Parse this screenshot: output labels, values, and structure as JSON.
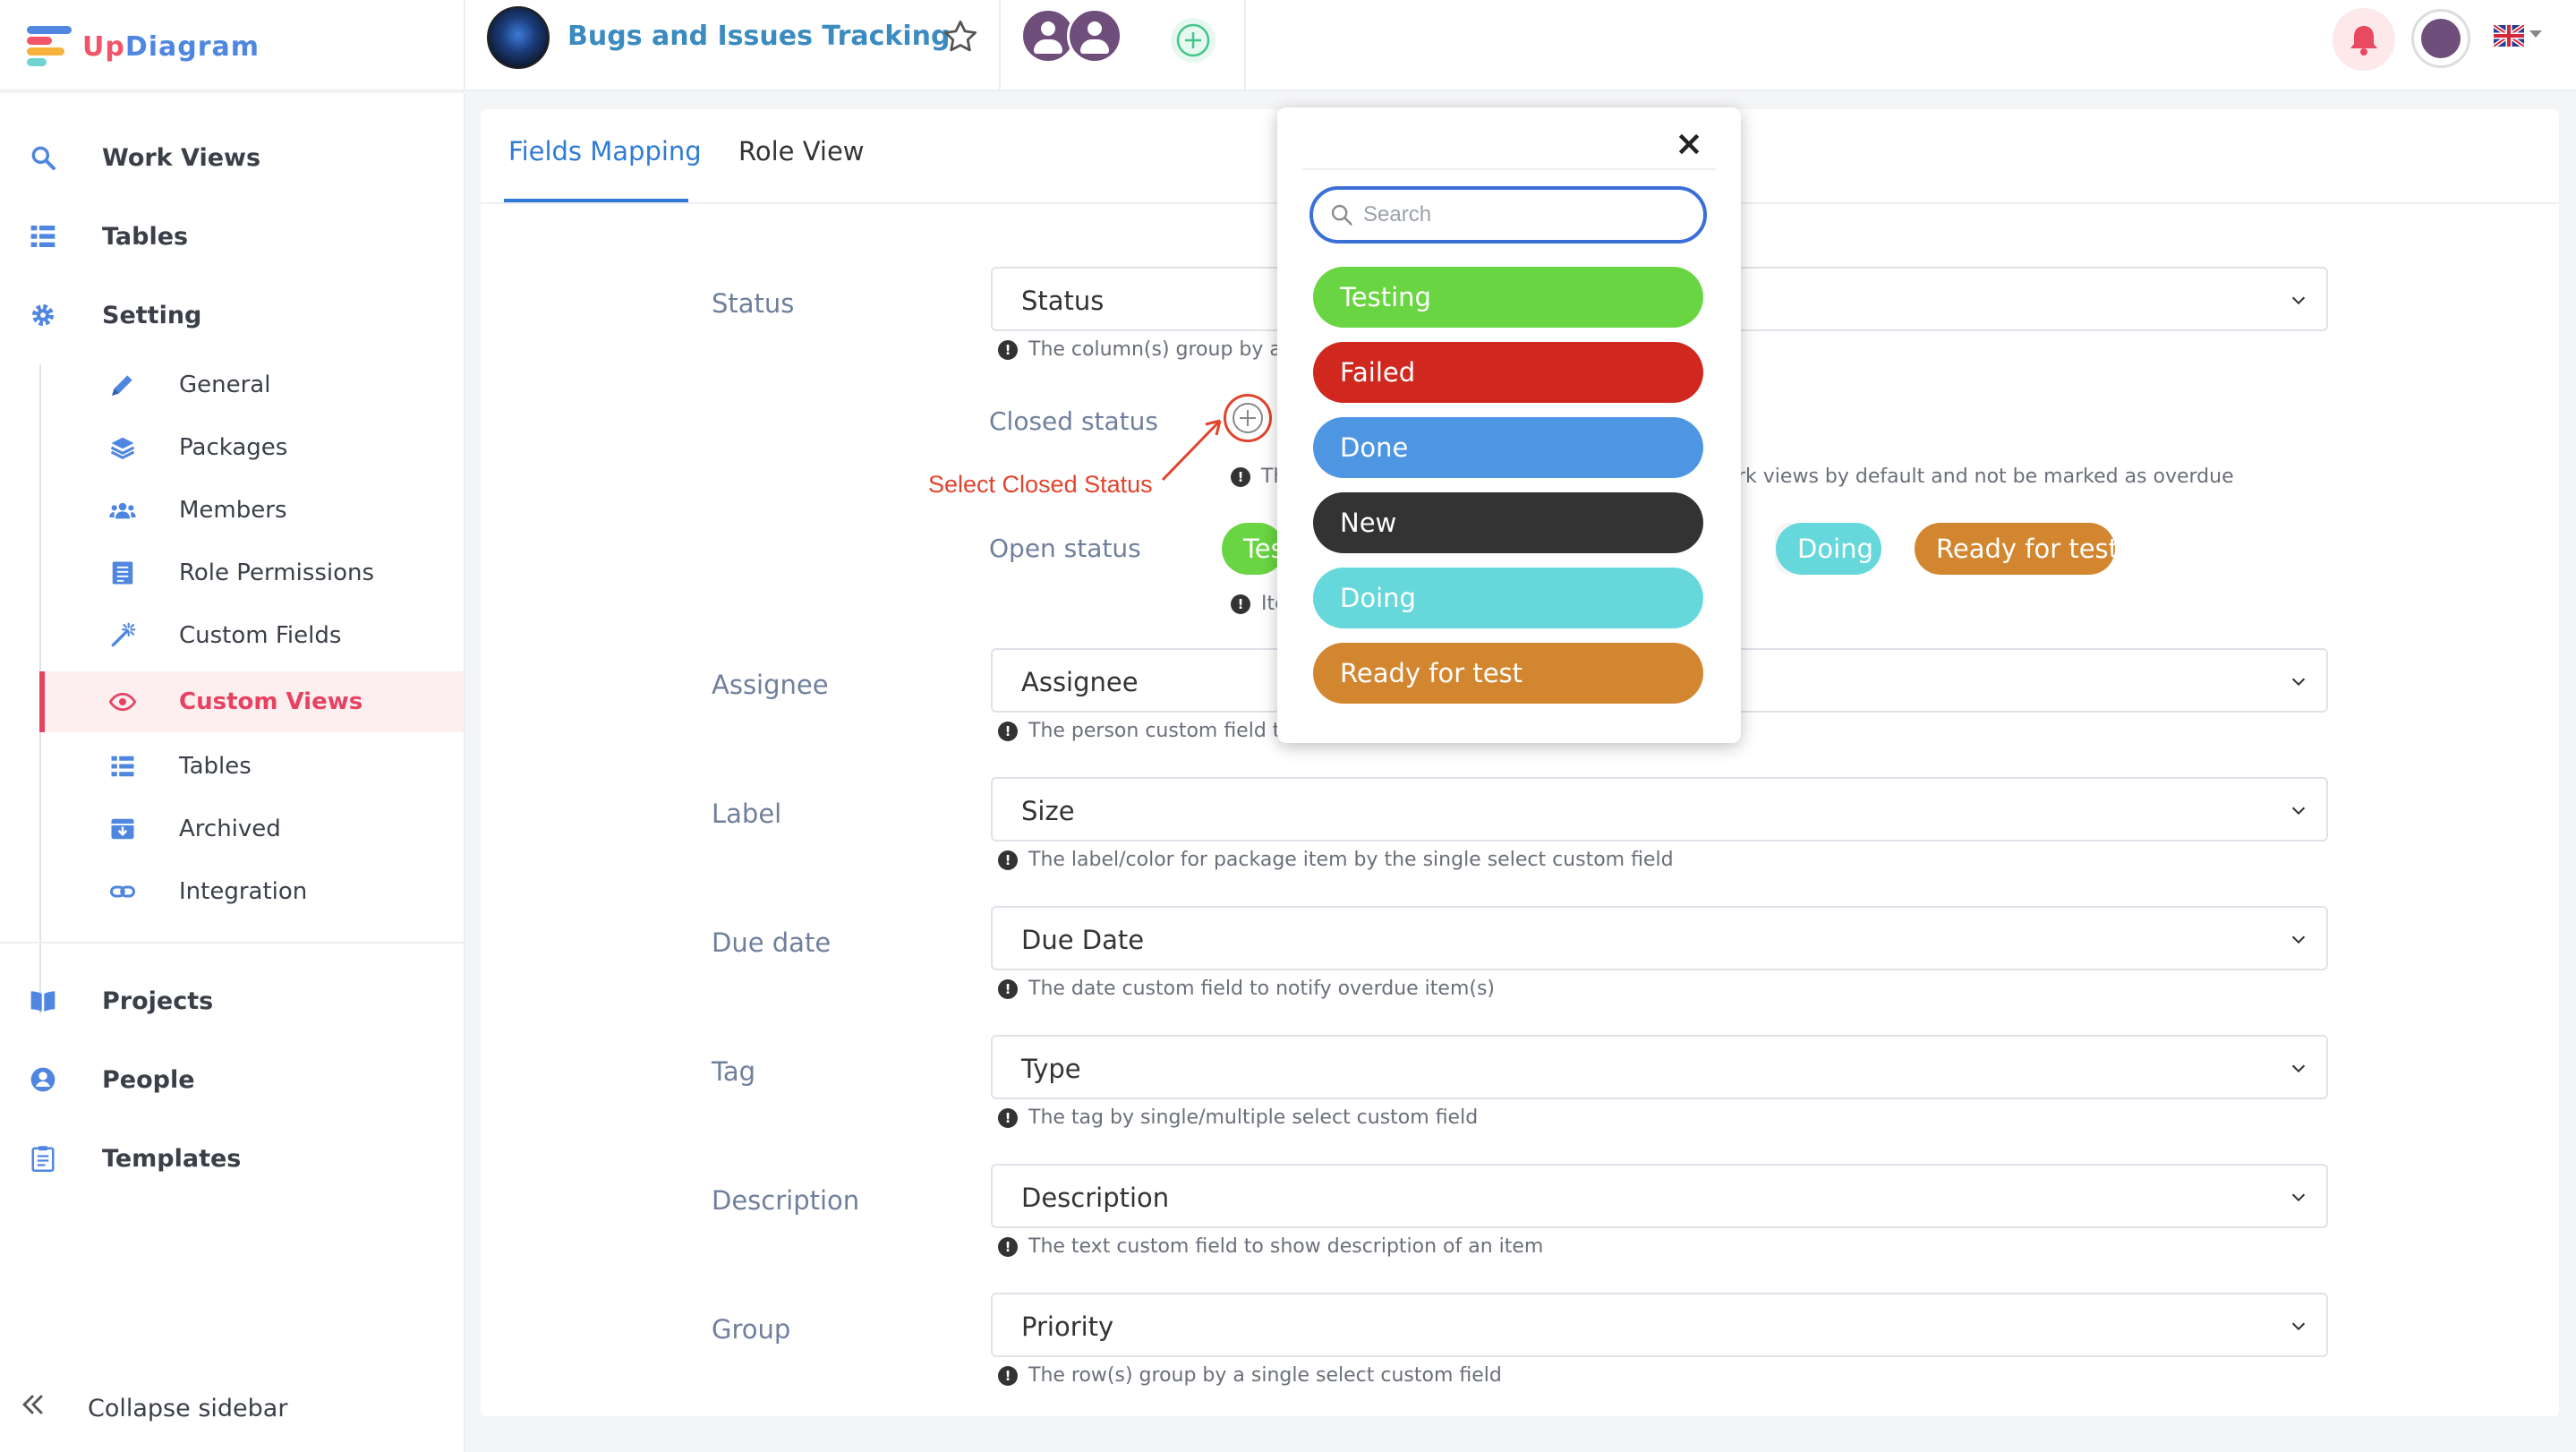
{
  "app": {
    "name_prefix": "Up",
    "name_suffix": "Diagram"
  },
  "project": {
    "title": "Bugs and Issues Tracking"
  },
  "sidebar": {
    "items": [
      {
        "label": "Work Views"
      },
      {
        "label": "Tables"
      },
      {
        "label": "Setting"
      }
    ],
    "setting_items": [
      {
        "label": "General"
      },
      {
        "label": "Packages"
      },
      {
        "label": "Members"
      },
      {
        "label": "Role Permissions"
      },
      {
        "label": "Custom Fields"
      },
      {
        "label": "Custom Views"
      },
      {
        "label": "Tables"
      },
      {
        "label": "Archived"
      },
      {
        "label": "Integration"
      }
    ],
    "bottom_items": [
      {
        "label": "Projects"
      },
      {
        "label": "People"
      },
      {
        "label": "Templates"
      }
    ],
    "collapse_label": "Collapse sidebar",
    "active_item": "Custom Views"
  },
  "tabs": [
    {
      "label": "Fields Mapping"
    },
    {
      "label": "Role View"
    }
  ],
  "fields": {
    "status": {
      "label": "Status",
      "value": "Status",
      "hint": "The column(s) group by a si"
    },
    "closed_status": {
      "label": "Closed status",
      "hint_prefix": "Th",
      "hint_suffix": "rk views by default and not be marked as overdue"
    },
    "annotation": "Select Closed Status",
    "open_status": {
      "label": "Open status",
      "hint": "Ite",
      "chips": [
        "Tes",
        "Doing",
        "Ready for test"
      ]
    },
    "assignee": {
      "label": "Assignee",
      "value": "Assignee",
      "hint": "The person custom field to s"
    },
    "label": {
      "label": "Label",
      "value": "Size",
      "hint": "The label/color for package item by the single select custom field"
    },
    "due_date": {
      "label": "Due date",
      "value": "Due Date",
      "hint": "The date custom field to notify overdue item(s)"
    },
    "tag": {
      "label": "Tag",
      "value": "Type",
      "hint": "The tag by single/multiple select custom field"
    },
    "description": {
      "label": "Description",
      "value": "Description",
      "hint": "The text custom field to show description of an item"
    },
    "group": {
      "label": "Group",
      "value": "Priority",
      "hint": "The row(s) group by a single select custom field"
    }
  },
  "popover": {
    "search_placeholder": "Search",
    "options": [
      {
        "label": "Testing",
        "color": "#6ad542"
      },
      {
        "label": "Failed",
        "color": "#d0281f"
      },
      {
        "label": "Done",
        "color": "#4f96e2"
      },
      {
        "label": "New",
        "color": "#333333"
      },
      {
        "label": "Doing",
        "color": "#66d8dc"
      },
      {
        "label": "Ready for test",
        "color": "#d38630"
      }
    ]
  },
  "colors": {
    "accent": "#2f7bd6",
    "active_nav": "#e54361",
    "annotation": "#e0442c",
    "chip_testing": "#6ad542",
    "chip_doing": "#66d8dc",
    "chip_ready": "#d38630"
  },
  "icons": {
    "work_views": "search-icon",
    "tables": "list-icon",
    "setting": "gear-icon",
    "general": "pencil-icon",
    "packages": "layers-icon",
    "members": "users-icon",
    "role_permissions": "doc-list-icon",
    "custom_fields": "magic-wand-icon",
    "custom_views": "eye-icon",
    "archived": "archive-box-icon",
    "integration": "link-icon",
    "projects": "book-icon",
    "people": "person-icon",
    "templates": "clipboard-icon"
  }
}
